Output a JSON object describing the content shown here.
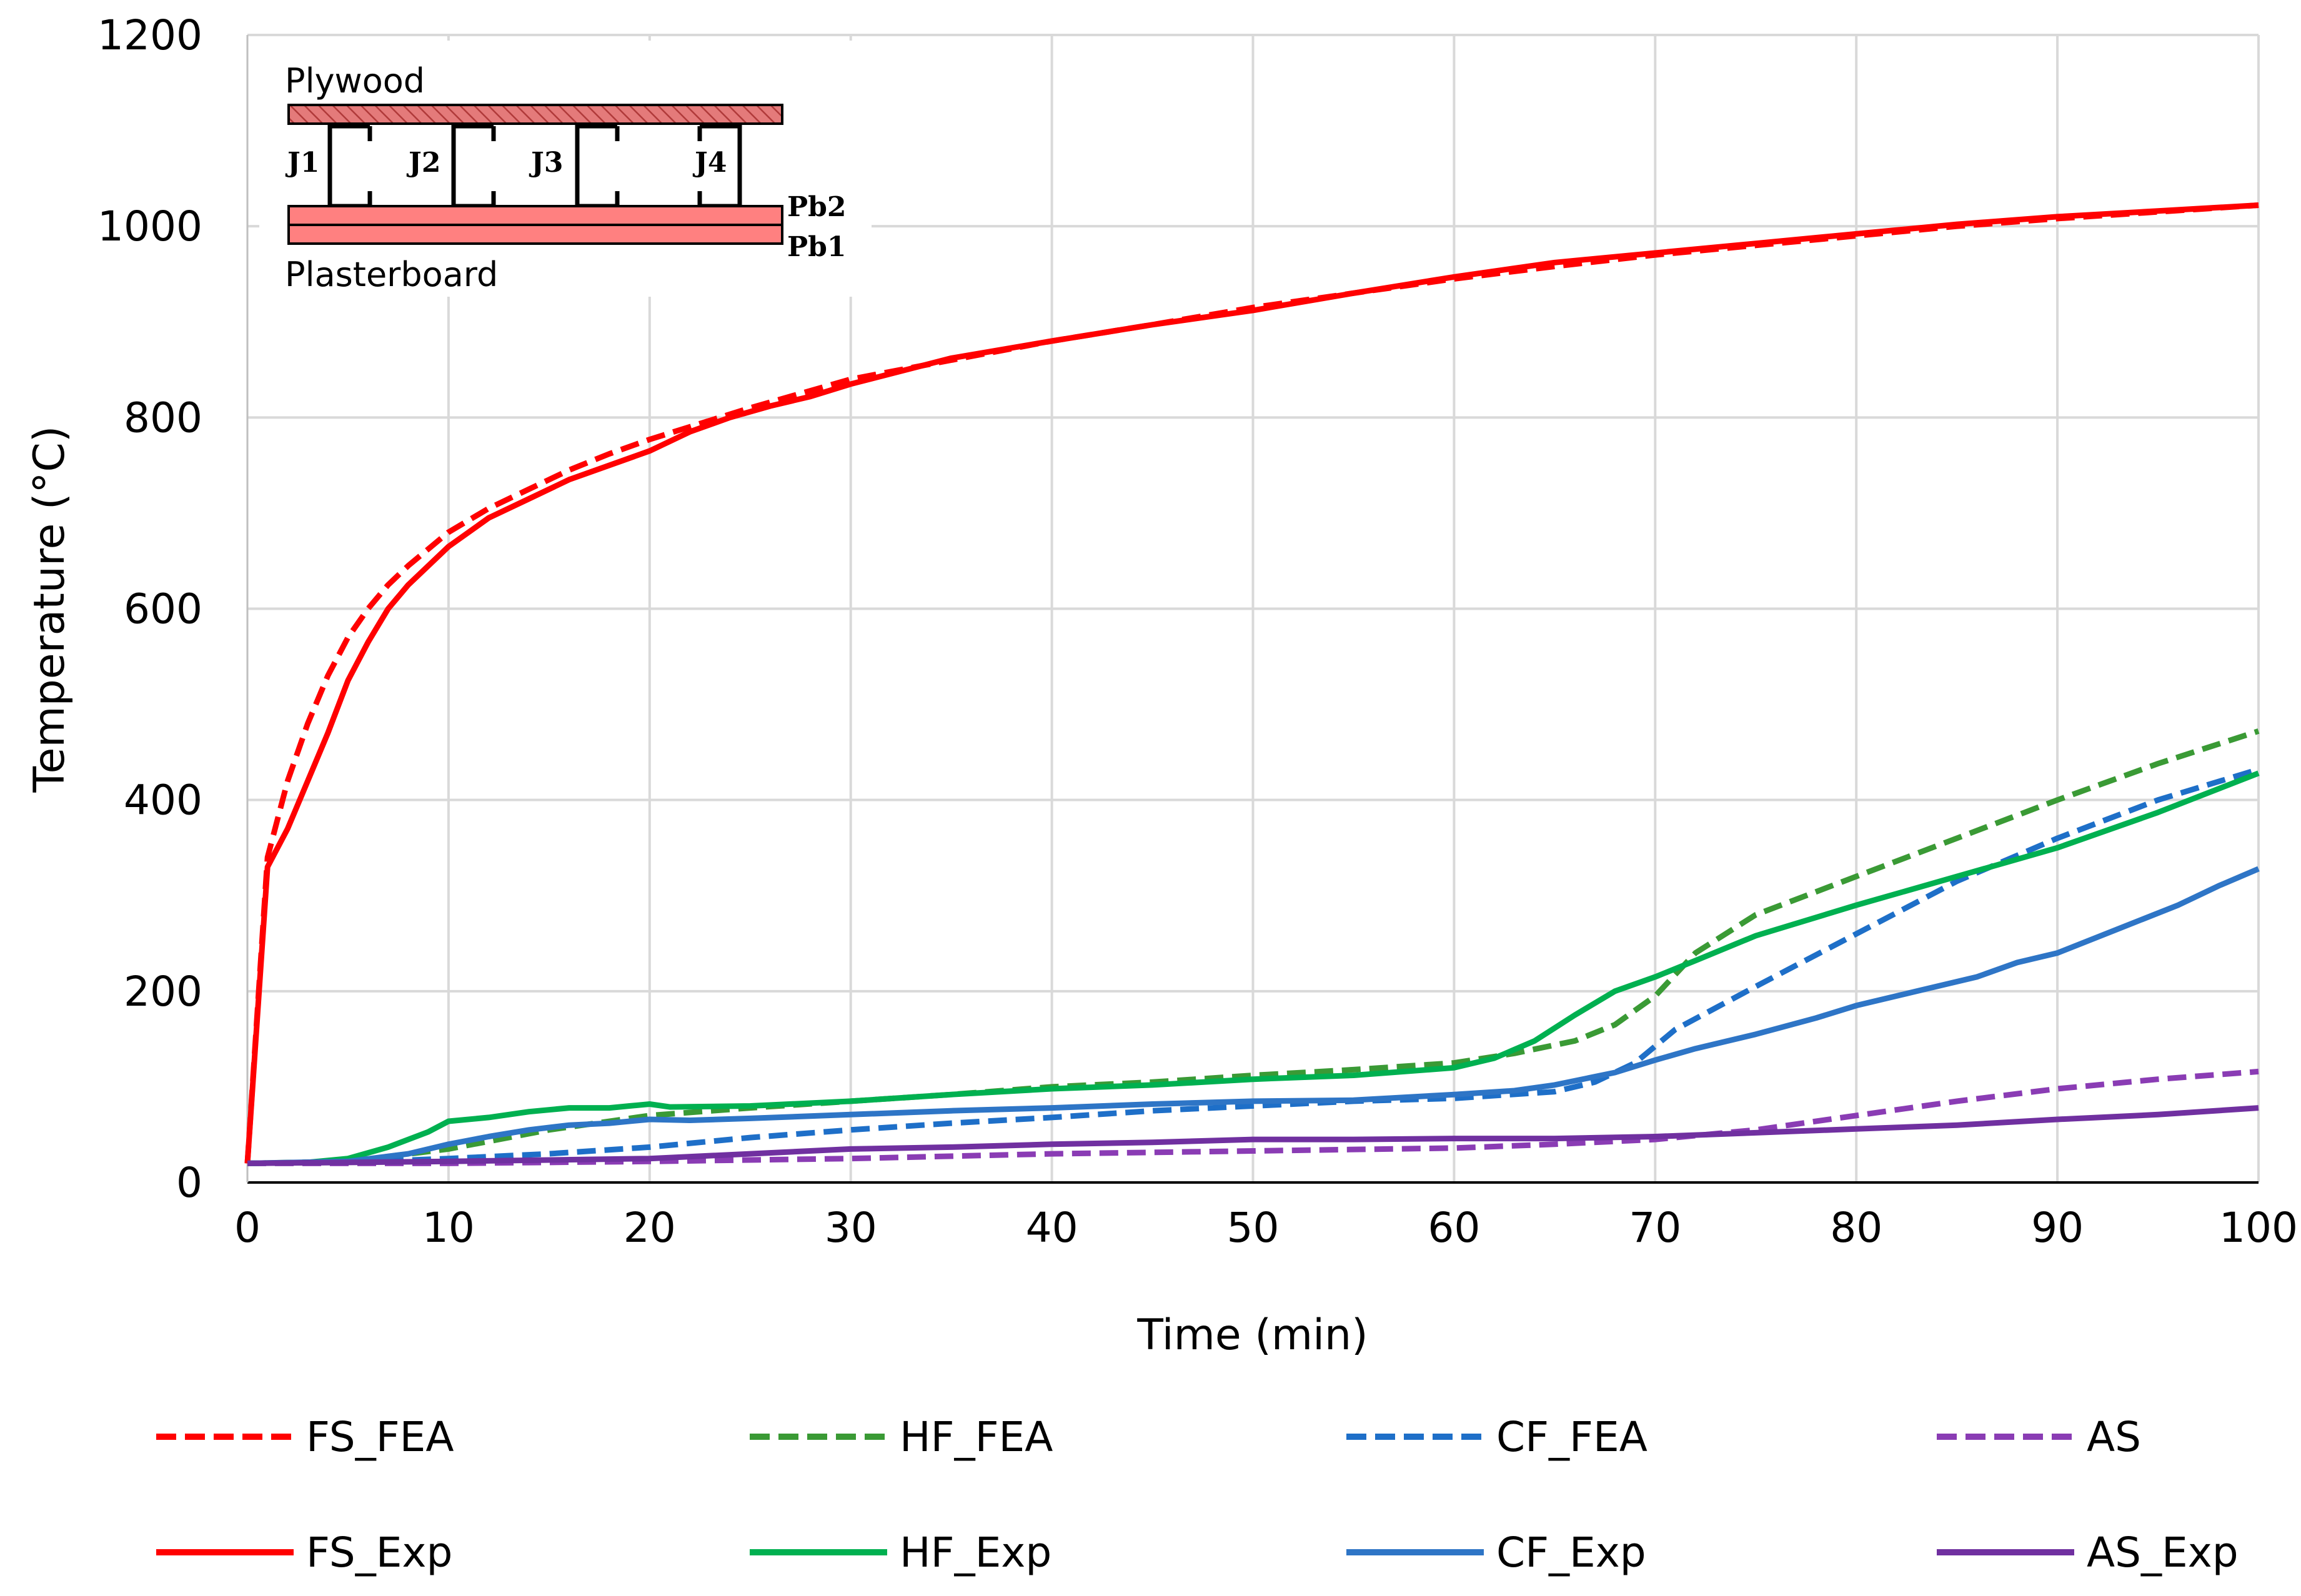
{
  "chart_data": {
    "type": "line",
    "title": "",
    "xlabel": "Time (min)",
    "ylabel": "Temperature (°C)",
    "xlim": [
      0,
      100
    ],
    "ylim": [
      0,
      1200
    ],
    "xticks": [
      0,
      10,
      20,
      30,
      40,
      50,
      60,
      70,
      80,
      90,
      100
    ],
    "yticks": [
      0,
      200,
      400,
      600,
      800,
      1000,
      1200
    ],
    "grid": true,
    "legend_position": "bottom",
    "series": [
      {
        "name": "FS_FEA",
        "color": "#ff0000",
        "style": "dashed",
        "x": [
          0,
          1,
          2,
          3,
          4,
          5,
          6,
          7,
          8,
          10,
          12,
          14,
          16,
          18,
          20,
          25,
          30,
          35,
          40,
          45,
          50,
          55,
          60,
          65,
          70,
          75,
          80,
          85,
          90,
          95,
          100
        ],
        "y": [
          20,
          340,
          420,
          480,
          530,
          570,
          600,
          625,
          645,
          680,
          705,
          725,
          745,
          762,
          777,
          810,
          840,
          860,
          880,
          897,
          915,
          930,
          945,
          958,
          970,
          980,
          990,
          1000,
          1008,
          1015,
          1022
        ]
      },
      {
        "name": "HF_FEA",
        "color": "#3a9a35",
        "style": "dashed",
        "x": [
          0,
          5,
          10,
          15,
          20,
          25,
          30,
          35,
          40,
          45,
          50,
          55,
          60,
          63,
          66,
          68,
          70,
          72,
          75,
          80,
          85,
          90,
          95,
          100
        ],
        "y": [
          20,
          22,
          35,
          55,
          70,
          78,
          85,
          92,
          100,
          105,
          112,
          118,
          125,
          135,
          148,
          165,
          195,
          240,
          280,
          320,
          360,
          400,
          438,
          472
        ]
      },
      {
        "name": "CF_FEA",
        "color": "#1e6fc8",
        "style": "dashed",
        "x": [
          0,
          5,
          10,
          15,
          20,
          25,
          30,
          35,
          40,
          45,
          50,
          55,
          60,
          65,
          67,
          69,
          71,
          75,
          80,
          85,
          90,
          95,
          100
        ],
        "y": [
          20,
          21,
          25,
          30,
          37,
          47,
          55,
          62,
          68,
          75,
          80,
          85,
          88,
          95,
          105,
          125,
          160,
          205,
          260,
          315,
          360,
          400,
          432
        ]
      },
      {
        "name": "AS",
        "color": "#8a3cb4",
        "style": "dashed",
        "x": [
          0,
          10,
          20,
          30,
          40,
          50,
          60,
          65,
          70,
          75,
          80,
          85,
          90,
          95,
          100
        ],
        "y": [
          20,
          20,
          22,
          25,
          30,
          33,
          36,
          40,
          45,
          55,
          70,
          85,
          98,
          108,
          116
        ]
      },
      {
        "name": "FS_Exp",
        "color": "#ff0000",
        "style": "solid",
        "x": [
          0,
          1,
          2,
          3,
          4,
          5,
          6,
          7,
          8,
          9,
          10,
          12,
          14,
          16,
          18,
          20,
          22,
          24,
          26,
          28,
          30,
          35,
          40,
          45,
          50,
          55,
          60,
          65,
          70,
          75,
          80,
          85,
          90,
          95,
          100
        ],
        "y": [
          20,
          330,
          370,
          420,
          470,
          525,
          565,
          600,
          625,
          645,
          665,
          695,
          715,
          735,
          750,
          765,
          785,
          800,
          812,
          822,
          835,
          862,
          880,
          897,
          912,
          930,
          947,
          962,
          972,
          982,
          992,
          1002,
          1010,
          1016,
          1022
        ]
      },
      {
        "name": "HF_Exp",
        "color": "#00b050",
        "style": "solid",
        "x": [
          0,
          3,
          5,
          7,
          9,
          10,
          12,
          14,
          16,
          18,
          19,
          20,
          21,
          25,
          30,
          35,
          40,
          45,
          50,
          55,
          60,
          62,
          64,
          66,
          68,
          70,
          72,
          75,
          80,
          85,
          90,
          95,
          100
        ],
        "y": [
          20,
          21,
          25,
          37,
          53,
          64,
          68,
          74,
          78,
          78,
          80,
          82,
          79,
          80,
          85,
          92,
          98,
          102,
          108,
          112,
          120,
          130,
          148,
          175,
          200,
          215,
          232,
          258,
          290,
          320,
          350,
          387,
          428
        ]
      },
      {
        "name": "CF_Exp",
        "color": "#2e75c6",
        "style": "solid",
        "x": [
          0,
          5,
          8,
          10,
          12,
          14,
          16,
          18,
          20,
          22,
          25,
          30,
          35,
          40,
          45,
          50,
          55,
          60,
          63,
          65,
          68,
          70,
          72,
          75,
          78,
          80,
          83,
          86,
          88,
          90,
          93,
          96,
          98,
          100
        ],
        "y": [
          20,
          22,
          30,
          40,
          48,
          55,
          60,
          62,
          66,
          65,
          67,
          71,
          75,
          78,
          82,
          85,
          86,
          92,
          96,
          102,
          115,
          128,
          140,
          155,
          172,
          185,
          200,
          215,
          230,
          240,
          265,
          290,
          310,
          328
        ]
      },
      {
        "name": "AS_Exp",
        "color": "#7030a0",
        "style": "solid",
        "x": [
          0,
          10,
          20,
          25,
          30,
          35,
          40,
          45,
          50,
          55,
          60,
          65,
          70,
          75,
          80,
          85,
          90,
          95,
          100
        ],
        "y": [
          20,
          22,
          25,
          30,
          35,
          37,
          40,
          42,
          45,
          45,
          46,
          46,
          48,
          52,
          56,
          60,
          66,
          71,
          78
        ]
      }
    ],
    "inset": {
      "top_label": "Plywood",
      "bottom_label": "Plasterboard",
      "joists": [
        "J1",
        "J2",
        "J3",
        "J4"
      ],
      "boards": [
        "Pb2",
        "Pb1"
      ]
    }
  }
}
